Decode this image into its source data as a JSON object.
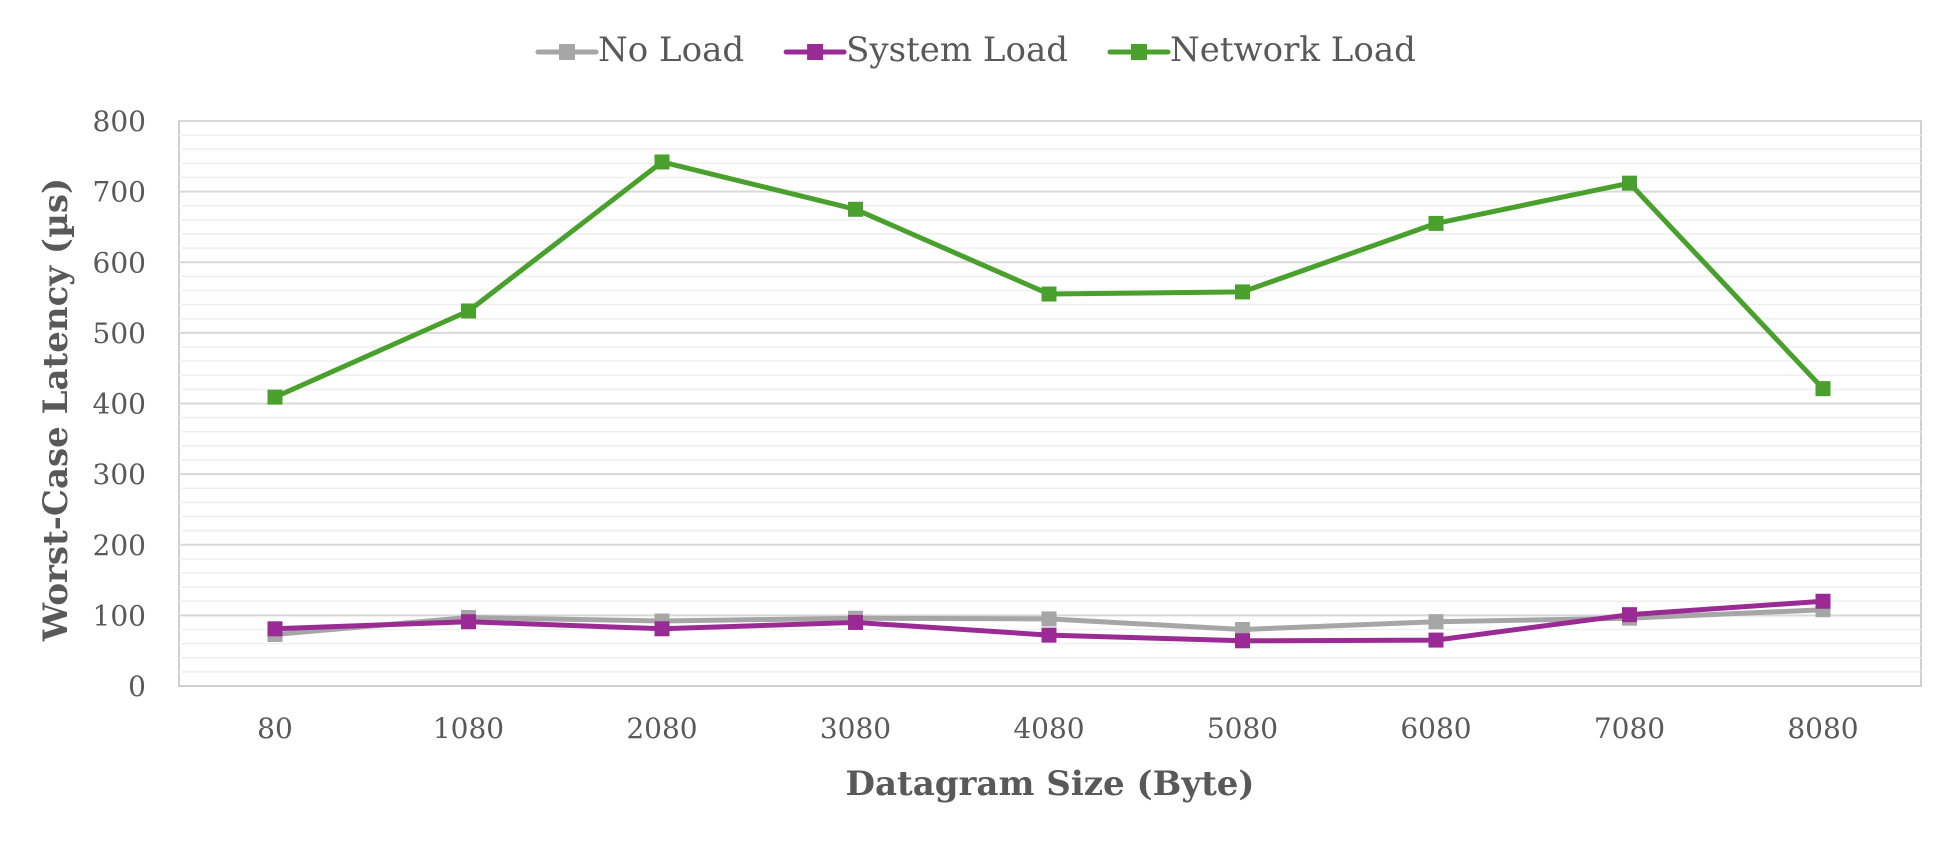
{
  "chart_data": {
    "type": "line",
    "title": "",
    "xlabel": "Datagram Size (Byte)",
    "ylabel": "Worst-Case Latency (µs)",
    "categories": [
      "80",
      "1080",
      "2080",
      "3080",
      "4080",
      "5080",
      "6080",
      "7080",
      "8080"
    ],
    "ylim": [
      0,
      800
    ],
    "yticks": [
      0,
      100,
      200,
      300,
      400,
      500,
      600,
      700,
      800
    ],
    "grid": true,
    "minor_grid": true,
    "legend_position": "top-center",
    "marker": "square",
    "series": [
      {
        "name": "No Load",
        "color": "#a6a6a6",
        "values": [
          73,
          97,
          92,
          96,
          95,
          80,
          91,
          96,
          108
        ]
      },
      {
        "name": "System Load",
        "color": "#9b2b94",
        "values": [
          81,
          91,
          81,
          90,
          72,
          64,
          65,
          101,
          120
        ]
      },
      {
        "name": "Network Load",
        "color": "#4aa02c",
        "values": [
          409,
          531,
          742,
          675,
          555,
          558,
          655,
          712,
          421
        ]
      }
    ]
  }
}
